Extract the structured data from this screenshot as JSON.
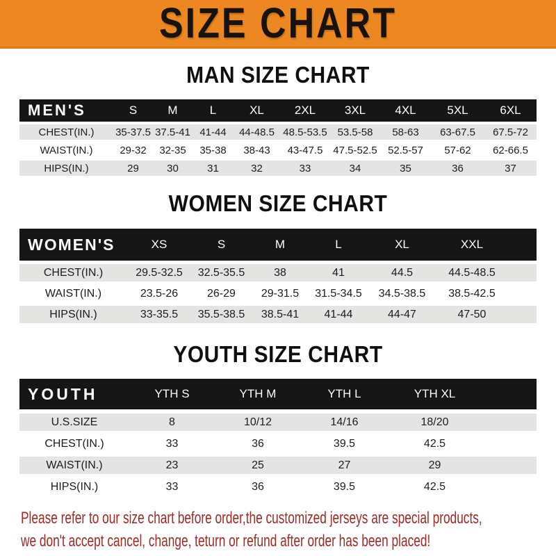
{
  "banner": {
    "title": "SIZE CHART",
    "bg_color": "#EC8722",
    "text_color": "#16120e"
  },
  "sections": [
    {
      "title": "MAN SIZE CHART",
      "header_label": "MEN'S",
      "columns": [
        "S",
        "M",
        "L",
        "XL",
        "2XL",
        "3XL",
        "4XL",
        "5XL",
        "6XL"
      ],
      "rows": [
        {
          "label": "CHEST(IN.)",
          "values": [
            "35-37.5",
            "37.5-41",
            "41-44",
            "44-48.5",
            "48.5-53.5",
            "53.5-58",
            "58-63",
            "63-67.5",
            "67.5-72"
          ]
        },
        {
          "label": "WAIST(IN.)",
          "values": [
            "29-32",
            "32-35",
            "35-38",
            "38-43",
            "43-47.5",
            "47.5-52.5",
            "52.5-57",
            "57-62",
            "62-66.5"
          ]
        },
        {
          "label": "HIPS(IN.)",
          "values": [
            "29",
            "30",
            "31",
            "32",
            "33",
            "34",
            "35",
            "36",
            "37"
          ]
        }
      ]
    },
    {
      "title": "WOMEN SIZE CHART",
      "header_label": "WOMEN'S",
      "columns": [
        "XS",
        "S",
        "M",
        "L",
        "XL",
        "XXL"
      ],
      "rows": [
        {
          "label": "CHEST(IN.)",
          "values": [
            "29.5-32.5",
            "32.5-35.5",
            "38",
            "41",
            "44.5",
            "44.5-48.5"
          ]
        },
        {
          "label": "WAIST(IN.)",
          "values": [
            "23.5-26",
            "26-29",
            "29-31.5",
            "31.5-34.5",
            "34.5-38.5",
            "38.5-42.5"
          ]
        },
        {
          "label": "HIPS(IN.)",
          "values": [
            "33-35.5",
            "35.5-38.5",
            "38.5-41",
            "41-44",
            "44-47",
            "47-50"
          ]
        }
      ]
    },
    {
      "title": "YOUTH SIZE CHART",
      "header_label": "YOUTH",
      "columns": [
        "YTH S",
        "YTH M",
        "YTH L",
        "YTH XL"
      ],
      "rows": [
        {
          "label": "U.S.SIZE",
          "values": [
            "8",
            "10/12",
            "14/16",
            "18/20"
          ]
        },
        {
          "label": "CHEST(IN.)",
          "values": [
            "33",
            "36",
            "39.5",
            "42.5"
          ]
        },
        {
          "label": "WAIST(IN.)",
          "values": [
            "23",
            "25",
            "27",
            "29"
          ]
        },
        {
          "label": "HIPS(IN.)",
          "values": [
            "33",
            "36",
            "39.5",
            "42.5"
          ]
        }
      ]
    }
  ],
  "disclaimer": {
    "lines": [
      "Please refer to our size chart before order,the customized jerseys are special products,",
      "we don't accept cancel, change, teturn or refund after order has been placed!"
    ],
    "text_color": "#9D2C25"
  },
  "colors": {
    "header_bar": "#151515",
    "row_stripe": "#E4E4E2",
    "row_plain": "#FFFFFF"
  }
}
